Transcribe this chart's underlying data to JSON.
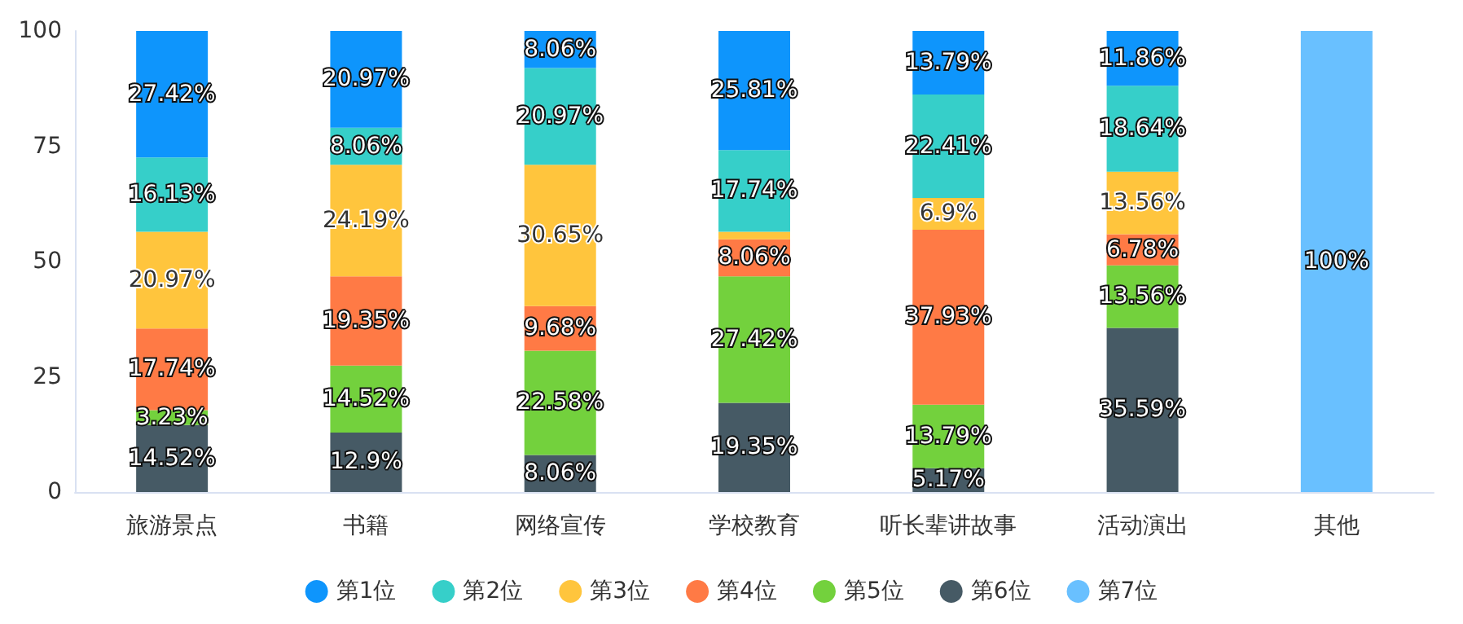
{
  "chart_data": {
    "type": "bar",
    "stacked": true,
    "categories": [
      "旅游景点",
      "书籍",
      "网络宣传",
      "学校教育",
      "听长辈讲故事",
      "活动演出",
      "其他"
    ],
    "ylim": [
      0,
      100
    ],
    "yticks": [
      0,
      25,
      50,
      75,
      100
    ],
    "grid": false,
    "legend": "bottom",
    "series": [
      {
        "name": "第7位",
        "color": "#69c0ff",
        "values": [
          0,
          0,
          0,
          0,
          0,
          0,
          100
        ],
        "value_labels": [
          null,
          null,
          null,
          null,
          null,
          null,
          "100%"
        ]
      },
      {
        "name": "第6位",
        "color": "#465a65",
        "values": [
          14.52,
          12.9,
          8.06,
          19.35,
          5.17,
          35.59,
          0
        ],
        "value_labels": [
          "14.52%",
          "12.9%",
          "8.06%",
          "19.35%",
          "5.17%",
          "35.59%",
          null
        ]
      },
      {
        "name": "第5位",
        "color": "#73d13d",
        "values": [
          3.23,
          14.52,
          22.58,
          27.42,
          13.79,
          13.56,
          0
        ],
        "value_labels": [
          "3.23%",
          "14.52%",
          "22.58%",
          "27.42%",
          "13.79%",
          "13.56%",
          null
        ]
      },
      {
        "name": "第4位",
        "color": "#ff7a45",
        "values": [
          17.74,
          19.35,
          9.68,
          8.06,
          37.93,
          6.78,
          0
        ],
        "value_labels": [
          "17.74%",
          "19.35%",
          "9.68%",
          "8.06%",
          "37.93%",
          "6.78%",
          null
        ]
      },
      {
        "name": "第3位",
        "color": "#ffc53d",
        "values": [
          20.97,
          24.19,
          30.65,
          1.6,
          6.9,
          13.56,
          0
        ],
        "value_labels": [
          "20.97%",
          "24.19%",
          "30.65%",
          null,
          "6.9%",
          "13.56%",
          null
        ]
      },
      {
        "name": "第2位",
        "color": "#36cfc9",
        "values": [
          16.13,
          8.06,
          20.97,
          17.74,
          22.41,
          18.64,
          0
        ],
        "value_labels": [
          "16.13%",
          "8.06%",
          "20.97%",
          "17.74%",
          "22.41%",
          "18.64%",
          null
        ]
      },
      {
        "name": "第1位",
        "color": "#0e95fc",
        "values": [
          27.42,
          20.97,
          8.06,
          25.81,
          13.79,
          11.86,
          0
        ],
        "value_labels": [
          "27.42%",
          "20.97%",
          "8.06%",
          "25.81%",
          "13.79%",
          "11.86%",
          null
        ]
      }
    ]
  }
}
